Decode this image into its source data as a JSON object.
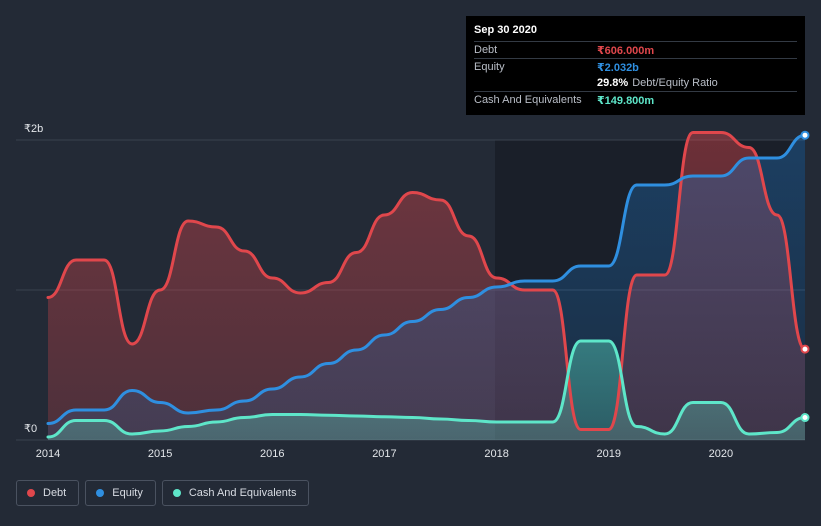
{
  "tooltip": {
    "date": "Sep 30 2020",
    "debt_label": "Debt",
    "debt_value": "₹606.000m",
    "equity_label": "Equity",
    "equity_value": "₹2.032b",
    "ratio_value": "29.8%",
    "ratio_label": "Debt/Equity Ratio",
    "cash_label": "Cash And Equivalents",
    "cash_value": "₹149.800m"
  },
  "legend": {
    "debt": "Debt",
    "equity": "Equity",
    "cash": "Cash And Equivalents"
  },
  "colors": {
    "debt": "#e0474c",
    "equity": "#2f8fe0",
    "cash": "#5ee6c9",
    "background": "#232a36"
  },
  "chart_data": {
    "type": "area",
    "y_tick_labels": [
      "₹2b",
      "₹0"
    ],
    "ylim": [
      0,
      2000
    ],
    "x_ticks": [
      2014,
      2015,
      2016,
      2017,
      2018,
      2019,
      2020
    ],
    "x_tick_labels": [
      "2014",
      "2015",
      "2016",
      "2017",
      "2018",
      "2019",
      "2020"
    ],
    "xlim": [
      2014.0,
      2020.75
    ],
    "gridlines": [
      0,
      1000,
      2000
    ],
    "legend_position": "bottom-left",
    "series": [
      {
        "name": "Debt",
        "color_key": "debt",
        "points": [
          [
            2014.0,
            950
          ],
          [
            2014.25,
            1200
          ],
          [
            2014.5,
            1200
          ],
          [
            2014.75,
            640
          ],
          [
            2015.0,
            1000
          ],
          [
            2015.25,
            1460
          ],
          [
            2015.5,
            1420
          ],
          [
            2015.75,
            1260
          ],
          [
            2016.0,
            1080
          ],
          [
            2016.25,
            980
          ],
          [
            2016.5,
            1050
          ],
          [
            2016.75,
            1250
          ],
          [
            2017.0,
            1500
          ],
          [
            2017.25,
            1650
          ],
          [
            2017.5,
            1600
          ],
          [
            2017.75,
            1360
          ],
          [
            2018.0,
            1080
          ],
          [
            2018.25,
            1000
          ],
          [
            2018.5,
            1000
          ],
          [
            2018.75,
            70
          ],
          [
            2019.0,
            70
          ],
          [
            2019.25,
            1100
          ],
          [
            2019.5,
            1100
          ],
          [
            2019.75,
            2050
          ],
          [
            2020.0,
            2050
          ],
          [
            2020.25,
            1950
          ],
          [
            2020.5,
            1500
          ],
          [
            2020.75,
            606
          ]
        ]
      },
      {
        "name": "Equity",
        "color_key": "equity",
        "points": [
          [
            2014.0,
            110
          ],
          [
            2014.25,
            200
          ],
          [
            2014.5,
            200
          ],
          [
            2014.75,
            330
          ],
          [
            2015.0,
            250
          ],
          [
            2015.25,
            180
          ],
          [
            2015.5,
            200
          ],
          [
            2015.75,
            260
          ],
          [
            2016.0,
            340
          ],
          [
            2016.25,
            420
          ],
          [
            2016.5,
            510
          ],
          [
            2016.75,
            600
          ],
          [
            2017.0,
            700
          ],
          [
            2017.25,
            790
          ],
          [
            2017.5,
            870
          ],
          [
            2017.75,
            950
          ],
          [
            2018.0,
            1020
          ],
          [
            2018.25,
            1060
          ],
          [
            2018.5,
            1060
          ],
          [
            2018.75,
            1160
          ],
          [
            2019.0,
            1160
          ],
          [
            2019.25,
            1700
          ],
          [
            2019.5,
            1700
          ],
          [
            2019.75,
            1760
          ],
          [
            2020.0,
            1760
          ],
          [
            2020.25,
            1880
          ],
          [
            2020.5,
            1880
          ],
          [
            2020.75,
            2032
          ]
        ]
      },
      {
        "name": "Cash And Equivalents",
        "color_key": "cash",
        "points": [
          [
            2014.0,
            20
          ],
          [
            2014.25,
            130
          ],
          [
            2014.5,
            130
          ],
          [
            2014.75,
            40
          ],
          [
            2015.0,
            60
          ],
          [
            2015.25,
            90
          ],
          [
            2015.5,
            120
          ],
          [
            2015.75,
            150
          ],
          [
            2016.0,
            170
          ],
          [
            2016.25,
            170
          ],
          [
            2016.5,
            165
          ],
          [
            2016.75,
            160
          ],
          [
            2017.0,
            155
          ],
          [
            2017.25,
            150
          ],
          [
            2017.5,
            140
          ],
          [
            2017.75,
            130
          ],
          [
            2018.0,
            120
          ],
          [
            2018.25,
            120
          ],
          [
            2018.5,
            120
          ],
          [
            2018.75,
            660
          ],
          [
            2019.0,
            660
          ],
          [
            2019.25,
            90
          ],
          [
            2019.5,
            40
          ],
          [
            2019.75,
            250
          ],
          [
            2020.0,
            250
          ],
          [
            2020.25,
            40
          ],
          [
            2020.5,
            50
          ],
          [
            2020.75,
            149.8
          ]
        ]
      }
    ]
  }
}
